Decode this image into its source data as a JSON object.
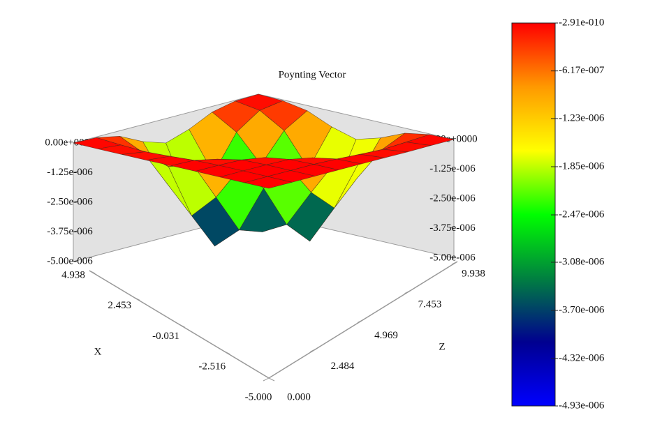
{
  "chart_data": {
    "type": "surface",
    "title": "Poynting Vector",
    "x_label": "X",
    "z_label": "Z",
    "x": [
      -5,
      -3.758,
      -2.516,
      -1.274,
      -0.031,
      1.211,
      2.453,
      3.696,
      4.938
    ],
    "z": [
      0,
      1.242,
      2.484,
      3.727,
      4.969,
      6.211,
      7.453,
      8.696,
      9.938
    ],
    "values": [
      [
        0,
        0,
        0,
        0,
        0,
        0,
        -1e-08,
        0,
        0
      ],
      [
        0,
        0,
        0,
        0,
        -3e-08,
        -9e-08,
        -1.4e-07,
        -9e-08,
        -3e-08
      ],
      [
        0,
        0,
        0,
        -3e-08,
        -2.2e-07,
        -6.5e-07,
        -9.5e-07,
        -6.5e-07,
        -2.1e-07
      ],
      [
        0,
        0,
        -3e-08,
        -1.9e-07,
        -8e-07,
        -2.17e-06,
        -3.09e-06,
        -2.07e-06,
        -6.5e-07
      ],
      [
        0,
        -3e-08,
        -2.4e-07,
        -8.5e-07,
        -1.98e-06,
        -3.77e-06,
        -4.73e-06,
        -3.09e-06,
        -9.5e-07
      ],
      [
        -1e-08,
        -1e-07,
        -7.1e-07,
        -2.34e-06,
        -3.98e-06,
        -4.32e-06,
        -3.77e-06,
        -2.17e-06,
        -6.6e-07
      ],
      [
        -1e-08,
        -1.5e-07,
        -1.03e-06,
        -3.36e-06,
        -4.9e-06,
        -3.98e-06,
        -1.98e-06,
        -8e-07,
        -2.2e-07
      ],
      [
        -1e-08,
        -1e-07,
        -7.1e-07,
        -2.25e-06,
        -3.36e-06,
        -2.34e-06,
        -8.5e-07,
        -1.9e-07,
        -4e-08
      ],
      [
        0,
        -3e-08,
        -2.3e-07,
        -7.1e-07,
        -1.03e-06,
        -7.1e-07,
        -2.4e-07,
        -3e-08,
        0
      ]
    ],
    "xlim": [
      -5,
      4.938
    ],
    "xticks": [
      {
        "value": -5,
        "label": "-5.000"
      },
      -2.516,
      -0.031,
      2.453,
      4.938
    ],
    "zlim": [
      0,
      9.938
    ],
    "zticks": [
      {
        "value": 0,
        "label": "0.000"
      },
      2.484,
      4.969,
      7.453,
      9.938
    ],
    "vlim": [
      -5e-06,
      0
    ],
    "vticks": [
      {
        "value": 0,
        "label": "0.00e+0000"
      },
      {
        "value": -1.25e-06,
        "label": "-1.25e-006"
      },
      {
        "value": -2.5e-06,
        "label": "-2.50e-006"
      },
      {
        "value": -3.75e-06,
        "label": "-3.75e-006"
      },
      {
        "value": -5e-06,
        "label": "-5.00e-006"
      }
    ],
    "colorbar": {
      "lim": [
        -4.93e-06,
        -2.91e-10
      ],
      "colors": [
        "#0000ff",
        "#000090",
        "#008040",
        "#00ff00",
        "#ffff00",
        "#ff9900",
        "#ff0000"
      ],
      "ticks": [
        {
          "value": -2.91e-10,
          "label": "-2.91e-010"
        },
        {
          "value": -6.17e-07,
          "label": "-6.17e-007"
        },
        {
          "value": -1.23e-06,
          "label": "-1.23e-006"
        },
        {
          "value": -1.85e-06,
          "label": "-1.85e-006"
        },
        {
          "value": -2.47e-06,
          "label": "-2.47e-006"
        },
        {
          "value": -3.08e-06,
          "label": "-3.08e-006"
        },
        {
          "value": -3.7e-06,
          "label": "-3.70e-006"
        },
        {
          "value": -4.32e-06,
          "label": "-4.32e-006"
        },
        {
          "value": -4.93e-06,
          "label": "-4.93e-006"
        }
      ]
    }
  }
}
